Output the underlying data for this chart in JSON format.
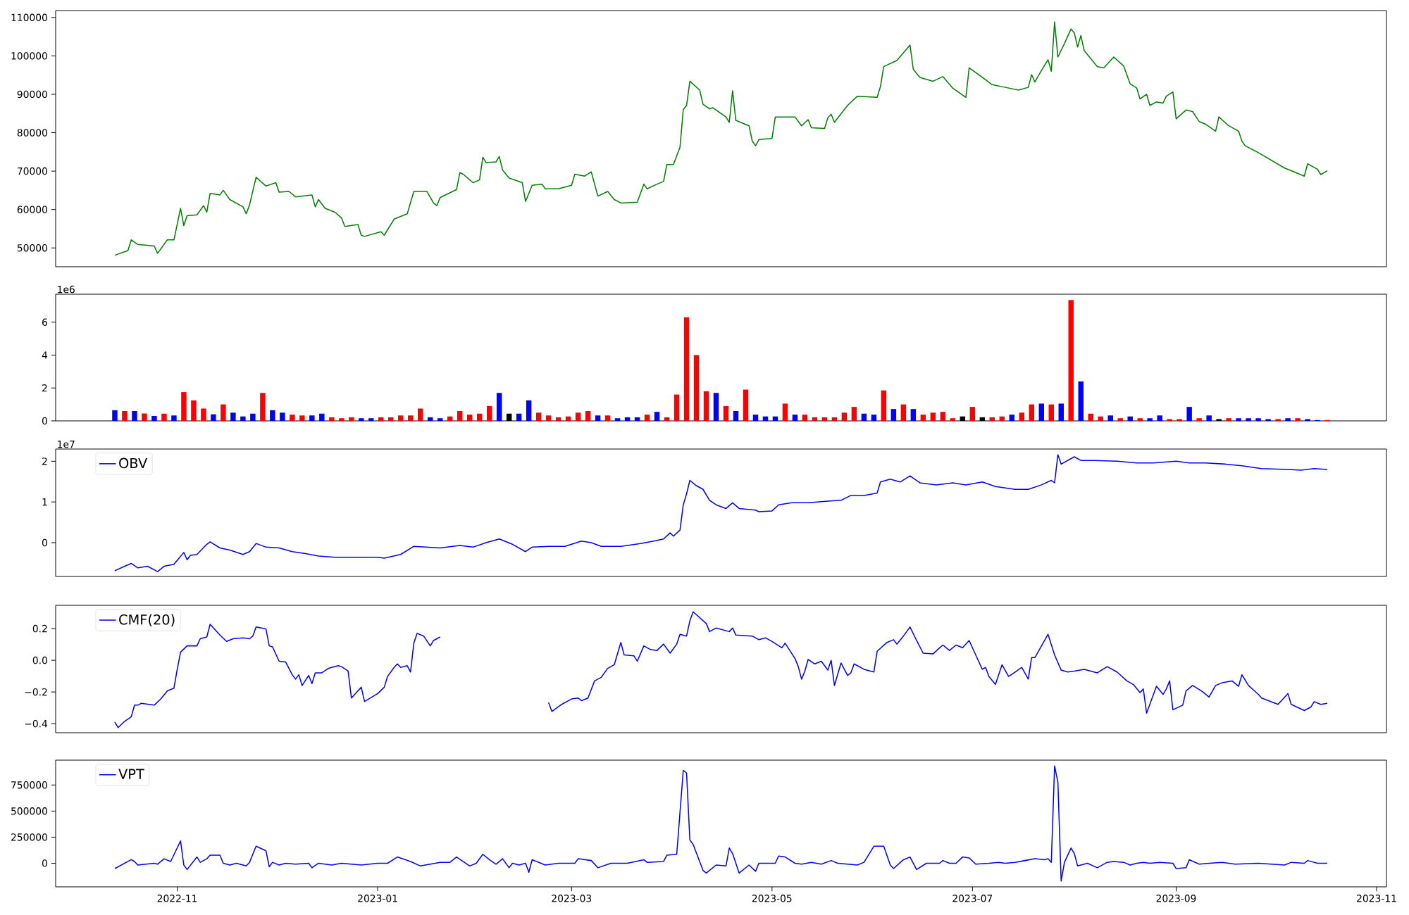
{
  "chart_data": [
    {
      "type": "line",
      "xlim": [
        "2022-09-25",
        "2023-11-04"
      ],
      "ylim": [
        45100,
        111800
      ],
      "yticks": [
        50000,
        60000,
        70000,
        80000,
        90000,
        100000,
        110000
      ],
      "tick_labels": "y",
      "x": [
        "2022-10-13",
        "2022-10-17",
        "2022-10-18",
        "2022-10-20",
        "2022-10-25",
        "2022-10-26",
        "2022-10-29",
        "2022-10-31",
        "2022-11-02",
        "2022-11-03",
        "2022-11-04",
        "2022-11-07",
        "2022-11-09",
        "2022-11-10",
        "2022-11-11",
        "2022-11-14",
        "2022-11-15",
        "2022-11-17",
        "2022-11-21",
        "2022-11-22",
        "2022-11-23",
        "2022-11-25",
        "2022-11-28",
        "2022-12-01",
        "2022-12-02",
        "2022-12-05",
        "2022-12-07",
        "2022-12-12",
        "2022-12-13",
        "2022-12-14",
        "2022-12-16",
        "2022-12-19",
        "2022-12-21",
        "2022-12-22",
        "2022-12-26",
        "2022-12-27",
        "2022-12-28",
        "2023-01-02",
        "2023-01-03",
        "2023-01-06",
        "2023-01-10",
        "2023-01-12",
        "2023-01-16",
        "2023-01-18",
        "2023-01-19",
        "2023-01-20",
        "2023-01-25",
        "2023-01-26",
        "2023-01-27",
        "2023-01-30",
        "2023-02-01",
        "2023-02-02",
        "2023-02-03",
        "2023-02-06",
        "2023-02-07",
        "2023-02-08",
        "2023-02-10",
        "2023-02-14",
        "2023-02-15",
        "2023-02-17",
        "2023-02-20",
        "2023-02-21",
        "2023-02-25",
        "2023-03-01",
        "2023-03-02",
        "2023-03-05",
        "2023-03-07",
        "2023-03-09",
        "2023-03-12",
        "2023-03-14",
        "2023-03-16",
        "2023-03-21",
        "2023-03-23",
        "2023-03-24",
        "2023-03-27",
        "2023-03-29",
        "2023-03-30",
        "2023-04-01",
        "2023-04-03",
        "2023-04-04",
        "2023-04-05",
        "2023-04-06",
        "2023-04-09",
        "2023-04-10",
        "2023-04-12",
        "2023-04-13",
        "2023-04-17",
        "2023-04-18",
        "2023-04-19",
        "2023-04-20",
        "2023-04-24",
        "2023-04-25",
        "2023-04-26",
        "2023-04-27",
        "2023-05-01",
        "2023-05-02",
        "2023-05-08",
        "2023-05-10",
        "2023-05-12",
        "2023-05-13",
        "2023-05-17",
        "2023-05-18",
        "2023-05-19",
        "2023-05-20",
        "2023-05-24",
        "2023-05-27",
        "2023-06-02",
        "2023-06-03",
        "2023-06-04",
        "2023-06-08",
        "2023-06-12",
        "2023-06-13",
        "2023-06-15",
        "2023-06-19",
        "2023-06-22",
        "2023-06-25",
        "2023-06-29",
        "2023-06-30",
        "2023-07-04",
        "2023-07-07",
        "2023-07-11",
        "2023-07-15",
        "2023-07-18",
        "2023-07-19",
        "2023-07-20",
        "2023-07-22",
        "2023-07-24",
        "2023-07-25",
        "2023-07-26",
        "2023-07-27",
        "2023-07-29",
        "2023-07-31",
        "2023-08-01",
        "2023-08-02",
        "2023-08-03",
        "2023-08-04",
        "2023-08-08",
        "2023-08-10",
        "2023-08-13",
        "2023-08-16",
        "2023-08-18",
        "2023-08-20",
        "2023-08-21",
        "2023-08-23",
        "2023-08-24",
        "2023-08-26",
        "2023-08-28",
        "2023-08-29",
        "2023-08-31",
        "2023-09-01",
        "2023-09-04",
        "2023-09-06",
        "2023-09-08",
        "2023-09-10",
        "2023-09-13",
        "2023-09-14",
        "2023-09-17",
        "2023-09-20",
        "2023-09-21",
        "2023-09-22",
        "2023-09-26",
        "2023-10-04",
        "2023-10-06",
        "2023-10-10",
        "2023-10-11",
        "2023-10-14",
        "2023-10-15",
        "2023-10-17"
      ],
      "series": [
        {
          "color": "#008000",
          "values": [
            48100,
            49300,
            52100,
            50900,
            50500,
            48600,
            52100,
            52100,
            60300,
            55800,
            58400,
            58600,
            61000,
            59300,
            64200,
            63800,
            65000,
            62600,
            60700,
            58900,
            61200,
            68400,
            66100,
            67000,
            64500,
            64700,
            63300,
            63800,
            60700,
            62600,
            60300,
            59300,
            57800,
            55600,
            56100,
            53300,
            53000,
            54200,
            53300,
            57500,
            58900,
            64700,
            64700,
            61700,
            61000,
            63100,
            65200,
            69600,
            69200,
            67000,
            67700,
            73600,
            72200,
            72400,
            73800,
            70300,
            68200,
            67000,
            62100,
            66300,
            66600,
            65400,
            65400,
            66300,
            69200,
            68700,
            69800,
            63500,
            64700,
            62600,
            61700,
            61900,
            66600,
            65400,
            66600,
            67300,
            71700,
            71700,
            76200,
            86000,
            87100,
            93400,
            91100,
            87400,
            86200,
            86500,
            84100,
            82700,
            90900,
            83200,
            81800,
            77800,
            76600,
            78200,
            78500,
            84100,
            84100,
            81800,
            83400,
            81300,
            81100,
            83900,
            84800,
            82700,
            87100,
            89500,
            89200,
            92000,
            97200,
            98800,
            102800,
            96500,
            94400,
            93400,
            94600,
            91600,
            89200,
            96900,
            94400,
            92500,
            91800,
            91100,
            91800,
            95100,
            93200,
            96200,
            99000,
            96000,
            108800,
            99700,
            103200,
            107000,
            106000,
            102300,
            105300,
            101400,
            97200,
            96900,
            99700,
            97400,
            92700,
            91600,
            88800,
            90000,
            87100,
            88000,
            87700,
            89500,
            90600,
            83600,
            85900,
            85500,
            82900,
            82200,
            80400,
            84100,
            81800,
            80400,
            77800,
            76600,
            74800,
            70800,
            70100,
            68700,
            71900,
            70500,
            69100,
            70100
          ]
        }
      ]
    },
    {
      "type": "bar",
      "xlim": [
        "2022-09-25",
        "2023-11-04"
      ],
      "ylim": [
        0,
        7.7
      ],
      "yticks": [
        0,
        2,
        4,
        6
      ],
      "tick_labels": "y",
      "annotations": [
        "1e6"
      ],
      "x": [
        "2022-10-13",
        "2022-10-16",
        "2022-10-19",
        "2022-10-22",
        "2022-10-25",
        "2022-10-28",
        "2022-10-31",
        "2022-11-03",
        "2022-11-06",
        "2022-11-09",
        "2022-11-12",
        "2022-11-15",
        "2022-11-18",
        "2022-11-21",
        "2022-11-24",
        "2022-11-27",
        "2022-11-30",
        "2022-12-03",
        "2022-12-06",
        "2022-12-09",
        "2022-12-12",
        "2022-12-15",
        "2022-12-18",
        "2022-12-21",
        "2022-12-24",
        "2022-12-27",
        "2022-12-30",
        "2023-01-02",
        "2023-01-05",
        "2023-01-08",
        "2023-01-11",
        "2023-01-14",
        "2023-01-17",
        "2023-01-20",
        "2023-01-23",
        "2023-01-26",
        "2023-01-29",
        "2023-02-01",
        "2023-02-04",
        "2023-02-07",
        "2023-02-10",
        "2023-02-13",
        "2023-02-16",
        "2023-02-19",
        "2023-02-22",
        "2023-02-25",
        "2023-02-28",
        "2023-03-03",
        "2023-03-06",
        "2023-03-09",
        "2023-03-12",
        "2023-03-15",
        "2023-03-18",
        "2023-03-21",
        "2023-03-24",
        "2023-03-27",
        "2023-03-30",
        "2023-04-02",
        "2023-04-05",
        "2023-04-08",
        "2023-04-11",
        "2023-04-14",
        "2023-04-17",
        "2023-04-20",
        "2023-04-23",
        "2023-04-26",
        "2023-04-29",
        "2023-05-02",
        "2023-05-05",
        "2023-05-08",
        "2023-05-11",
        "2023-05-14",
        "2023-05-17",
        "2023-05-20",
        "2023-05-23",
        "2023-05-26",
        "2023-05-29",
        "2023-06-01",
        "2023-06-04",
        "2023-06-07",
        "2023-06-10",
        "2023-06-13",
        "2023-06-16",
        "2023-06-19",
        "2023-06-22",
        "2023-06-25",
        "2023-06-28",
        "2023-07-01",
        "2023-07-04",
        "2023-07-07",
        "2023-07-10",
        "2023-07-13",
        "2023-07-16",
        "2023-07-19",
        "2023-07-22",
        "2023-07-25",
        "2023-07-28",
        "2023-07-31",
        "2023-08-03",
        "2023-08-06",
        "2023-08-09",
        "2023-08-12",
        "2023-08-15",
        "2023-08-18",
        "2023-08-21",
        "2023-08-24",
        "2023-08-27",
        "2023-08-30",
        "2023-09-02",
        "2023-09-05",
        "2023-09-08",
        "2023-09-11",
        "2023-09-14",
        "2023-09-17",
        "2023-09-20",
        "2023-09-23",
        "2023-09-26",
        "2023-09-29",
        "2023-10-02",
        "2023-10-05",
        "2023-10-08",
        "2023-10-11",
        "2023-10-14",
        "2023-10-17"
      ],
      "values": [
        0.65,
        0.6,
        0.6,
        0.45,
        0.3,
        0.44,
        0.33,
        1.75,
        1.25,
        0.75,
        0.4,
        1.0,
        0.5,
        0.27,
        0.44,
        1.7,
        0.65,
        0.5,
        0.38,
        0.33,
        0.33,
        0.44,
        0.22,
        0.16,
        0.22,
        0.16,
        0.16,
        0.22,
        0.22,
        0.33,
        0.33,
        0.75,
        0.22,
        0.16,
        0.27,
        0.6,
        0.38,
        0.44,
        0.9,
        1.7,
        0.44,
        0.44,
        1.25,
        0.5,
        0.33,
        0.22,
        0.27,
        0.5,
        0.6,
        0.33,
        0.33,
        0.16,
        0.22,
        0.22,
        0.38,
        0.55,
        0.22,
        1.6,
        6.3,
        4.0,
        1.8,
        1.7,
        0.9,
        0.6,
        1.9,
        0.38,
        0.27,
        0.27,
        1.05,
        0.38,
        0.38,
        0.22,
        0.22,
        0.22,
        0.5,
        0.85,
        0.44,
        0.38,
        1.85,
        0.72,
        1.0,
        0.72,
        0.38,
        0.5,
        0.55,
        0.16,
        0.27,
        0.85,
        0.22,
        0.22,
        0.27,
        0.38,
        0.5,
        1.0,
        1.05,
        1.0,
        1.05,
        7.35,
        2.4,
        0.44,
        0.27,
        0.33,
        0.16,
        0.27,
        0.16,
        0.16,
        0.33,
        0.11,
        0.11,
        0.85,
        0.16,
        0.33,
        0.11,
        0.16,
        0.16,
        0.16,
        0.16,
        0.11,
        0.11,
        0.16,
        0.16,
        0.11,
        0.05,
        0.05
      ],
      "colors": [
        "#0000ff",
        "#ff0000",
        "#0000ff",
        "#ff0000",
        "#0000ff",
        "#ff0000",
        "#0000ff",
        "#ff0000",
        "#ff0000",
        "#ff0000",
        "#0000ff",
        "#ff0000",
        "#0000ff",
        "#0000ff",
        "#0000ff",
        "#ff0000",
        "#0000ff",
        "#0000ff",
        "#ff0000",
        "#ff0000",
        "#0000ff",
        "#0000ff",
        "#ff0000",
        "#ff0000",
        "#ff0000",
        "#0000ff",
        "#0000ff",
        "#ff0000",
        "#ff0000",
        "#ff0000",
        "#ff0000",
        "#ff0000",
        "#0000ff",
        "#0000ff",
        "#ff0000",
        "#ff0000",
        "#ff0000",
        "#ff0000",
        "#ff0000",
        "#0000ff",
        "#000000",
        "#0000ff",
        "#0000ff",
        "#ff0000",
        "#ff0000",
        "#ff0000",
        "#ff0000",
        "#ff0000",
        "#ff0000",
        "#0000ff",
        "#ff0000",
        "#0000ff",
        "#0000ff",
        "#0000ff",
        "#ff0000",
        "#0000ff",
        "#ff0000",
        "#ff0000",
        "#ff0000",
        "#ff0000",
        "#ff0000",
        "#0000ff",
        "#ff0000",
        "#0000ff",
        "#ff0000",
        "#0000ff",
        "#0000ff",
        "#0000ff",
        "#ff0000",
        "#0000ff",
        "#ff0000",
        "#ff0000",
        "#ff0000",
        "#ff0000",
        "#ff0000",
        "#ff0000",
        "#0000ff",
        "#0000ff",
        "#ff0000",
        "#0000ff",
        "#ff0000",
        "#0000ff",
        "#ff0000",
        "#ff0000",
        "#ff0000",
        "#ff0000",
        "#000000",
        "#ff0000",
        "#000000",
        "#ff0000",
        "#ff0000",
        "#0000ff",
        "#ff0000",
        "#ff0000",
        "#0000ff",
        "#ff0000",
        "#0000ff",
        "#ff0000",
        "#0000ff",
        "#ff0000",
        "#ff0000",
        "#0000ff",
        "#ff0000",
        "#0000ff",
        "#ff0000",
        "#0000ff",
        "#0000ff",
        "#ff0000",
        "#ff0000",
        "#0000ff",
        "#ff0000",
        "#0000ff",
        "#000000",
        "#ff0000",
        "#0000ff",
        "#0000ff",
        "#0000ff",
        "#0000ff",
        "#ff0000",
        "#0000ff",
        "#ff0000",
        "#0000ff",
        "#0000ff",
        "#ff0000"
      ]
    },
    {
      "type": "line",
      "xlim": [
        "2022-09-25",
        "2023-11-04"
      ],
      "ylim": [
        -0.83,
        2.3
      ],
      "yticks": [
        0,
        1,
        2
      ],
      "tick_labels": "y",
      "annotations": [
        "1e7"
      ],
      "legend": "top left",
      "x": [
        "2022-10-13",
        "2022-10-16",
        "2022-10-18",
        "2022-10-20",
        "2022-10-23",
        "2022-10-26",
        "2022-10-28",
        "2022-10-31",
        "2022-11-03",
        "2022-11-04",
        "2022-11-05",
        "2022-11-07",
        "2022-11-10",
        "2022-11-11",
        "2022-11-14",
        "2022-11-17",
        "2022-11-21",
        "2022-11-23",
        "2022-11-25",
        "2022-11-28",
        "2022-12-02",
        "2022-12-06",
        "2022-12-10",
        "2022-12-14",
        "2022-12-19",
        "2022-12-22",
        "2022-12-27",
        "2023-01-01",
        "2023-01-03",
        "2023-01-08",
        "2023-01-12",
        "2023-01-16",
        "2023-01-20",
        "2023-01-26",
        "2023-01-30",
        "2023-02-03",
        "2023-02-07",
        "2023-02-11",
        "2023-02-15",
        "2023-02-17",
        "2023-02-22",
        "2023-02-27",
        "2023-03-04",
        "2023-03-07",
        "2023-03-10",
        "2023-03-16",
        "2023-03-22",
        "2023-03-26",
        "2023-03-29",
        "2023-03-31",
        "2023-04-01",
        "2023-04-03",
        "2023-04-04",
        "2023-04-05",
        "2023-04-06",
        "2023-04-08",
        "2023-04-10",
        "2023-04-12",
        "2023-04-14",
        "2023-04-17",
        "2023-04-19",
        "2023-04-21",
        "2023-04-26",
        "2023-04-27",
        "2023-05-01",
        "2023-05-03",
        "2023-05-07",
        "2023-05-12",
        "2023-05-18",
        "2023-05-22",
        "2023-05-25",
        "2023-05-29",
        "2023-06-02",
        "2023-06-03",
        "2023-06-06",
        "2023-06-09",
        "2023-06-12",
        "2023-06-15",
        "2023-06-20",
        "2023-06-25",
        "2023-06-29",
        "2023-07-04",
        "2023-07-08",
        "2023-07-14",
        "2023-07-18",
        "2023-07-22",
        "2023-07-25",
        "2023-07-26",
        "2023-07-27",
        "2023-07-28",
        "2023-08-01",
        "2023-08-03",
        "2023-08-07",
        "2023-08-14",
        "2023-08-20",
        "2023-08-25",
        "2023-09-01",
        "2023-09-05",
        "2023-09-10",
        "2023-09-16",
        "2023-09-21",
        "2023-09-27",
        "2023-10-05",
        "2023-10-09",
        "2023-10-13",
        "2023-10-17"
      ],
      "series": [
        {
          "name": "OBV",
          "color": "#0000ff",
          "values": [
            -0.69,
            -0.58,
            -0.51,
            -0.62,
            -0.58,
            -0.71,
            -0.58,
            -0.53,
            -0.24,
            -0.42,
            -0.31,
            -0.29,
            -0.04,
            0.02,
            -0.13,
            -0.18,
            -0.29,
            -0.22,
            -0.02,
            -0.11,
            -0.13,
            -0.22,
            -0.27,
            -0.33,
            -0.36,
            -0.36,
            -0.36,
            -0.36,
            -0.38,
            -0.29,
            -0.09,
            -0.11,
            -0.13,
            -0.07,
            -0.11,
            0,
            0.09,
            -0.04,
            -0.22,
            -0.11,
            -0.09,
            -0.09,
            0.04,
            0,
            -0.09,
            -0.09,
            -0.02,
            0.04,
            0.09,
            0.24,
            0.16,
            0.31,
            0.93,
            1.2,
            1.53,
            1.4,
            1.31,
            1.04,
            0.93,
            0.84,
            0.98,
            0.84,
            0.8,
            0.76,
            0.78,
            0.93,
            0.98,
            0.98,
            1.02,
            1.04,
            1.16,
            1.16,
            1.22,
            1.49,
            1.56,
            1.49,
            1.64,
            1.47,
            1.42,
            1.47,
            1.42,
            1.49,
            1.38,
            1.31,
            1.31,
            1.42,
            1.53,
            1.47,
            2.16,
            1.93,
            2.11,
            2.02,
            2.02,
            2.0,
            1.96,
            1.96,
            2.0,
            1.96,
            1.96,
            1.93,
            1.89,
            1.82,
            1.8,
            1.78,
            1.82,
            1.8
          ]
        }
      ]
    },
    {
      "type": "line",
      "xlim": [
        "2022-09-25",
        "2023-11-04"
      ],
      "ylim": [
        -0.457,
        0.347
      ],
      "yticks": [
        {
          "value": -0.4,
          "label": "−0.4"
        },
        {
          "value": -0.2,
          "label": "−0.2"
        },
        {
          "value": 0.0,
          "label": "0.0"
        },
        {
          "value": 0.2,
          "label": "0.2"
        }
      ],
      "tick_labels": "y",
      "legend": "top left",
      "x": [
        "2022-10-13",
        "2022-10-14",
        "2022-10-16",
        "2022-10-18",
        "2022-10-19",
        "2022-10-20",
        "2022-10-21",
        "2022-10-25",
        "2022-10-27",
        "2022-10-29",
        "2022-10-31",
        "2022-11-01",
        "2022-11-02",
        "2022-11-04",
        "2022-11-07",
        "2022-11-08",
        "2022-11-10",
        "2022-11-11",
        "2022-11-14",
        "2022-11-16",
        "2022-11-18",
        "2022-11-21",
        "2022-11-23",
        "2022-11-24",
        "2022-11-25",
        "2022-11-28",
        "2022-11-29",
        "2022-11-30",
        "2022-12-02",
        "2022-12-04",
        "2022-12-06",
        "2022-12-07",
        "2022-12-08",
        "2022-12-09",
        "2022-12-11",
        "2022-12-12",
        "2022-12-13",
        "2022-12-15",
        "2022-12-17",
        "2022-12-20",
        "2022-12-21",
        "2022-12-23",
        "2022-12-24",
        "2022-12-27",
        "2022-12-28",
        "2023-01-01",
        "2023-01-03",
        "2023-01-04",
        "2023-01-06",
        "2023-01-07",
        "2023-01-08",
        "2023-01-10",
        "2023-01-11",
        "2023-01-12",
        "2023-01-13",
        "2023-01-15",
        "2023-01-17",
        "2023-01-18",
        "2023-01-20",
        "2023-02-05",
        "2023-02-22",
        "2023-02-23",
        "2023-02-26",
        "2023-03-01",
        "2023-03-03",
        "2023-03-04",
        "2023-03-06",
        "2023-03-08",
        "2023-03-10",
        "2023-03-12",
        "2023-03-14",
        "2023-03-16",
        "2023-03-17",
        "2023-03-20",
        "2023-03-21",
        "2023-03-23",
        "2023-03-25",
        "2023-03-27",
        "2023-03-29",
        "2023-03-31",
        "2023-04-02",
        "2023-04-03",
        "2023-04-05",
        "2023-04-06",
        "2023-04-07",
        "2023-04-11",
        "2023-04-12",
        "2023-04-14",
        "2023-04-18",
        "2023-04-19",
        "2023-04-20",
        "2023-04-25",
        "2023-04-27",
        "2023-04-29",
        "2023-05-01",
        "2023-05-04",
        "2023-05-05",
        "2023-05-08",
        "2023-05-09",
        "2023-05-10",
        "2023-05-11",
        "2023-05-12",
        "2023-05-14",
        "2023-05-16",
        "2023-05-18",
        "2023-05-19",
        "2023-05-20",
        "2023-05-22",
        "2023-05-24",
        "2023-05-25",
        "2023-05-26",
        "2023-05-29",
        "2023-06-01",
        "2023-06-02",
        "2023-06-05",
        "2023-06-07",
        "2023-06-08",
        "2023-06-10",
        "2023-06-12",
        "2023-06-14",
        "2023-06-16",
        "2023-06-19",
        "2023-06-21",
        "2023-06-22",
        "2023-06-24",
        "2023-06-26",
        "2023-06-28",
        "2023-06-30",
        "2023-07-02",
        "2023-07-04",
        "2023-07-05",
        "2023-07-06",
        "2023-07-08",
        "2023-07-10",
        "2023-07-12",
        "2023-07-14",
        "2023-07-16",
        "2023-07-18",
        "2023-07-19",
        "2023-07-20",
        "2023-07-24",
        "2023-07-26",
        "2023-07-28",
        "2023-07-30",
        "2023-08-01",
        "2023-08-04",
        "2023-08-08",
        "2023-08-11",
        "2023-08-14",
        "2023-08-17",
        "2023-08-19",
        "2023-08-21",
        "2023-08-22",
        "2023-08-23",
        "2023-08-26",
        "2023-08-28",
        "2023-08-29",
        "2023-08-30",
        "2023-08-31",
        "2023-09-03",
        "2023-09-04",
        "2023-09-06",
        "2023-09-09",
        "2023-09-11",
        "2023-09-13",
        "2023-09-15",
        "2023-09-18",
        "2023-09-20",
        "2023-09-21",
        "2023-09-23",
        "2023-09-26",
        "2023-09-27",
        "2023-10-02",
        "2023-10-05",
        "2023-10-06",
        "2023-10-10",
        "2023-10-12",
        "2023-10-13",
        "2023-10-15",
        "2023-10-17"
      ],
      "series": [
        {
          "name": "CMF(20)",
          "color": "#0000ff",
          "values": [
            -0.39,
            -0.425,
            -0.385,
            -0.357,
            -0.283,
            -0.283,
            -0.272,
            -0.283,
            -0.244,
            -0.193,
            -0.176,
            -0.057,
            0.051,
            0.091,
            0.091,
            0.136,
            0.147,
            0.227,
            0.159,
            0.119,
            0.136,
            0.142,
            0.136,
            0.153,
            0.21,
            0.198,
            0.091,
            0.085,
            -0.006,
            -0.011,
            -0.091,
            -0.119,
            -0.091,
            -0.159,
            -0.096,
            -0.147,
            -0.079,
            -0.079,
            -0.051,
            -0.034,
            -0.04,
            -0.068,
            -0.238,
            -0.17,
            -0.26,
            -0.21,
            -0.17,
            -0.102,
            -0.045,
            -0.023,
            -0.045,
            -0.034,
            -0.074,
            0.108,
            0.17,
            0.153,
            0.091,
            0.125,
            0.147,
            null,
            -0.266,
            -0.323,
            -0.278,
            -0.244,
            -0.238,
            -0.255,
            -0.238,
            -0.13,
            -0.108,
            -0.051,
            -0.028,
            0.113,
            0.034,
            0.028,
            -0.006,
            0.091,
            0.068,
            0.062,
            0.102,
            0.045,
            0.102,
            0.164,
            0.153,
            0.249,
            0.306,
            0.232,
            0.181,
            0.204,
            0.181,
            0.204,
            0.159,
            0.153,
            0.13,
            0.142,
            0.119,
            0.079,
            0.108,
            0.011,
            -0.04,
            -0.119,
            -0.068,
            0.006,
            -0.023,
            -0.006,
            -0.062,
            0.0,
            -0.159,
            -0.017,
            -0.096,
            -0.079,
            -0.023,
            -0.057,
            -0.074,
            0.057,
            0.113,
            0.13,
            0.102,
            0.153,
            0.21,
            0.125,
            0.045,
            0.04,
            0.079,
            0.096,
            0.062,
            0.096,
            0.079,
            0.125,
            0.034,
            -0.057,
            -0.045,
            -0.102,
            -0.153,
            -0.028,
            -0.102,
            -0.074,
            -0.045,
            -0.119,
            0.017,
            0.017,
            0.164,
            0.034,
            -0.062,
            -0.074,
            -0.068,
            -0.057,
            -0.079,
            -0.04,
            -0.074,
            -0.13,
            -0.153,
            -0.204,
            -0.181,
            -0.334,
            -0.164,
            -0.215,
            -0.181,
            -0.13,
            -0.312,
            -0.283,
            -0.193,
            -0.159,
            -0.198,
            -0.232,
            -0.159,
            -0.142,
            -0.13,
            -0.164,
            -0.091,
            -0.159,
            -0.215,
            -0.238,
            -0.278,
            -0.21,
            -0.278,
            -0.317,
            -0.295,
            -0.261,
            -0.278,
            -0.272
          ]
        }
      ]
    },
    {
      "type": "line",
      "xlim": [
        "2022-09-25",
        "2023-11-04"
      ],
      "ylim": [
        -226000,
        988000
      ],
      "yticks": [
        0,
        250000,
        500000,
        750000
      ],
      "xticks": [
        {
          "value": "2022-11-01",
          "label": "2022-11"
        },
        {
          "value": "2023-01-01",
          "label": "2023-01"
        },
        {
          "value": "2023-03-01",
          "label": "2023-03"
        },
        {
          "value": "2023-05-01",
          "label": "2023-05"
        },
        {
          "value": "2023-07-01",
          "label": "2023-07"
        },
        {
          "value": "2023-09-01",
          "label": "2023-09"
        },
        {
          "value": "2023-11-01",
          "label": "2023-11"
        }
      ],
      "legend": "top left",
      "x": [
        "2022-10-13",
        "2022-10-18",
        "2022-10-19",
        "2022-10-20",
        "2022-10-25",
        "2022-10-26",
        "2022-10-28",
        "2022-10-30",
        "2022-11-02",
        "2022-11-03",
        "2022-11-04",
        "2022-11-07",
        "2022-11-08",
        "2022-11-10",
        "2022-11-11",
        "2022-11-14",
        "2022-11-15",
        "2022-11-17",
        "2022-11-19",
        "2022-11-22",
        "2022-11-23",
        "2022-11-25",
        "2022-11-28",
        "2022-11-29",
        "2022-11-30",
        "2022-12-02",
        "2022-12-04",
        "2022-12-07",
        "2022-12-11",
        "2022-12-12",
        "2022-12-14",
        "2022-12-18",
        "2022-12-21",
        "2022-12-27",
        "2023-01-01",
        "2023-01-04",
        "2023-01-07",
        "2023-01-11",
        "2023-01-14",
        "2023-01-20",
        "2023-01-23",
        "2023-01-25",
        "2023-01-29",
        "2023-01-31",
        "2023-02-02",
        "2023-02-04",
        "2023-02-06",
        "2023-02-08",
        "2023-02-10",
        "2023-02-11",
        "2023-02-13",
        "2023-02-15",
        "2023-02-16",
        "2023-02-17",
        "2023-02-21",
        "2023-02-25",
        "2023-03-02",
        "2023-03-03",
        "2023-03-07",
        "2023-03-09",
        "2023-03-13",
        "2023-03-18",
        "2023-03-23",
        "2023-03-24",
        "2023-03-29",
        "2023-03-30",
        "2023-04-02",
        "2023-04-04",
        "2023-04-05",
        "2023-04-06",
        "2023-04-07",
        "2023-04-10",
        "2023-04-11",
        "2023-04-14",
        "2023-04-17",
        "2023-04-18",
        "2023-04-19",
        "2023-04-21",
        "2023-04-24",
        "2023-04-26",
        "2023-04-27",
        "2023-05-02",
        "2023-05-03",
        "2023-05-05",
        "2023-05-08",
        "2023-05-10",
        "2023-05-13",
        "2023-05-16",
        "2023-05-19",
        "2023-05-21",
        "2023-05-27",
        "2023-05-29",
        "2023-06-01",
        "2023-06-04",
        "2023-06-06",
        "2023-06-07",
        "2023-06-10",
        "2023-06-12",
        "2023-06-14",
        "2023-06-17",
        "2023-06-21",
        "2023-06-22",
        "2023-06-24",
        "2023-06-26",
        "2023-06-28",
        "2023-06-30",
        "2023-07-02",
        "2023-07-06",
        "2023-07-09",
        "2023-07-11",
        "2023-07-14",
        "2023-07-17",
        "2023-07-20",
        "2023-07-23",
        "2023-07-24",
        "2023-07-25",
        "2023-07-26",
        "2023-07-27",
        "2023-07-28",
        "2023-07-29",
        "2023-07-31",
        "2023-08-01",
        "2023-08-02",
        "2023-08-05",
        "2023-08-08",
        "2023-08-11",
        "2023-08-13",
        "2023-08-16",
        "2023-08-18",
        "2023-08-20",
        "2023-08-22",
        "2023-08-24",
        "2023-08-27",
        "2023-08-31",
        "2023-09-01",
        "2023-09-04",
        "2023-09-05",
        "2023-09-08",
        "2023-09-11",
        "2023-09-15",
        "2023-09-19",
        "2023-09-26",
        "2023-10-04",
        "2023-10-06",
        "2023-10-10",
        "2023-10-11",
        "2023-10-14",
        "2023-10-17"
      ],
      "series": [
        {
          "name": "VPT",
          "color": "#0000ff",
          "values": [
            -51000,
            34000,
            17000,
            -17000,
            0,
            -9000,
            43000,
            17000,
            214000,
            -17000,
            -60000,
            60000,
            9000,
            43000,
            77000,
            77000,
            0,
            -17000,
            0,
            -26000,
            9000,
            163000,
            120000,
            -34000,
            9000,
            -17000,
            0,
            -9000,
            0,
            -43000,
            0,
            -17000,
            0,
            -17000,
            0,
            0,
            60000,
            17000,
            -26000,
            9000,
            9000,
            60000,
            -26000,
            0,
            86000,
            34000,
            -9000,
            43000,
            -43000,
            0,
            -17000,
            0,
            -86000,
            34000,
            -17000,
            0,
            0,
            43000,
            26000,
            -43000,
            0,
            0,
            34000,
            9000,
            17000,
            77000,
            86000,
            890000,
            865000,
            223000,
            180000,
            -68000,
            -94000,
            -17000,
            -26000,
            146000,
            94000,
            -94000,
            -17000,
            -77000,
            0,
            0,
            69000,
            60000,
            0,
            -9000,
            9000,
            -9000,
            26000,
            0,
            -17000,
            9000,
            163000,
            163000,
            -17000,
            -51000,
            34000,
            60000,
            -60000,
            0,
            0,
            26000,
            0,
            0,
            60000,
            51000,
            -9000,
            0,
            9000,
            0,
            9000,
            26000,
            43000,
            34000,
            43000,
            9000,
            933000,
            779000,
            -171000,
            9000,
            146000,
            94000,
            -26000,
            0,
            -43000,
            9000,
            17000,
            9000,
            -17000,
            0,
            9000,
            0,
            9000,
            0,
            -51000,
            -43000,
            34000,
            -9000,
            0,
            9000,
            -9000,
            0,
            -17000,
            9000,
            0,
            26000,
            0,
            0
          ]
        }
      ]
    }
  ]
}
